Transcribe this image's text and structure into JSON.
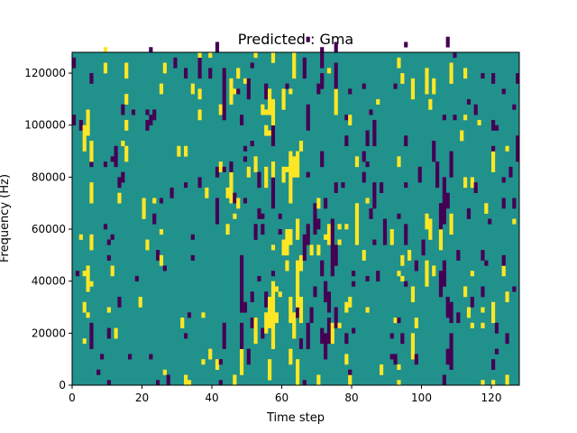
{
  "chart_data": {
    "type": "heatmap",
    "title": "Predicted : Gma",
    "xlabel": "Time step",
    "ylabel": "Frequency (Hz)",
    "xlim": [
      0,
      128
    ],
    "ylim": [
      0,
      128000
    ],
    "x_ticks": [
      0,
      20,
      40,
      60,
      80,
      100,
      120
    ],
    "x_tick_labels": [
      "0",
      "20",
      "40",
      "60",
      "80",
      "100",
      "120"
    ],
    "y_ticks": [
      0,
      20000,
      40000,
      60000,
      80000,
      100000,
      120000
    ],
    "y_tick_labels": [
      "0",
      "20000",
      "40000",
      "60000",
      "80000",
      "100000",
      "120000"
    ],
    "grid": false,
    "colormap": {
      "low": "#440154",
      "mid": "#21918c",
      "high": "#fde725"
    },
    "background_level": "mid",
    "columns": 128,
    "rows": 64,
    "note_dark_columns": [
      41,
      43,
      48,
      53,
      57,
      66,
      67,
      68,
      69,
      71,
      72,
      73,
      74,
      75,
      86,
      89,
      95,
      104,
      105,
      106,
      107,
      108,
      109,
      110,
      127
    ],
    "note_bright_columns": [
      3,
      4,
      5,
      44,
      45,
      50,
      52,
      55,
      56,
      57,
      60,
      61,
      62,
      63,
      64,
      65,
      81,
      97,
      101,
      102,
      103
    ]
  }
}
